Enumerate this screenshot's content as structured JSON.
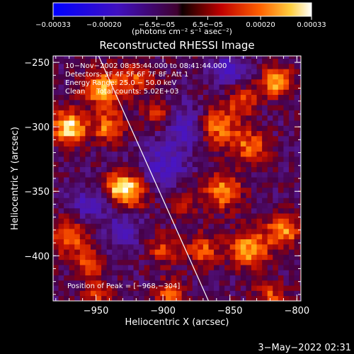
{
  "chart_data": {
    "type": "heatmap",
    "title": "Reconstructed RHESSI Image",
    "xlabel": "Heliocentric X (arcsec)",
    "ylabel": "Heliocentric Y (arcsec)",
    "xlim": [
      -982,
      -797
    ],
    "ylim": [
      -435,
      -245
    ],
    "xticks": [
      -950,
      -900,
      -850,
      -800
    ],
    "xtick_labels": [
      "−950",
      "−900",
      "−850",
      "−800"
    ],
    "yticks": [
      -250,
      -300,
      -350,
      -400
    ],
    "ytick_labels": [
      "−250",
      "−300",
      "−350",
      "−400"
    ],
    "colorbar": {
      "vmin": -0.00033,
      "vmax": 0.00033,
      "ticks": [
        -0.00033,
        -0.0002,
        -6.5e-05,
        6.5e-05,
        0.0002,
        0.00033
      ],
      "tick_labels": [
        "−0.00033",
        "−0.00020",
        "−6.5e−05",
        "6.5e−05",
        "0.00020",
        "0.00033"
      ],
      "units": "(photons cm⁻² s⁻¹ asec⁻²)"
    },
    "annotations": [
      "10−Nov−2002 08:35:44.000 to 08:41:44.000",
      "Detectors: 3F 4F 5F 6F 7F 8F, Att 1",
      "Energy Range: 25.0 − 50.0 keV",
      "Clean     Total counts: 5.02E+03",
      "Position of Peak = [−968,−304]"
    ],
    "peak": {
      "x": -968,
      "y": -304
    },
    "limb_line": {
      "x1": -948,
      "y1": -245,
      "x2": -866,
      "y2": -435
    },
    "hotspots": [
      {
        "x": -970,
        "y": -300,
        "amp": 1.0,
        "s": 9
      },
      {
        "x": -945,
        "y": -270,
        "amp": 0.85,
        "s": 10
      },
      {
        "x": -940,
        "y": -300,
        "amp": 0.7,
        "s": 8
      },
      {
        "x": -918,
        "y": -262,
        "amp": 0.55,
        "s": 8
      },
      {
        "x": -925,
        "y": -350,
        "amp": 0.85,
        "s": 9
      },
      {
        "x": -935,
        "y": -345,
        "amp": 0.55,
        "s": 7
      },
      {
        "x": -905,
        "y": -290,
        "amp": 0.5,
        "s": 7
      },
      {
        "x": -860,
        "y": -300,
        "amp": 0.75,
        "s": 11
      },
      {
        "x": -835,
        "y": -315,
        "amp": 0.6,
        "s": 9
      },
      {
        "x": -840,
        "y": -280,
        "amp": 0.55,
        "s": 8
      },
      {
        "x": -815,
        "y": -265,
        "amp": 0.85,
        "s": 8
      },
      {
        "x": -855,
        "y": -350,
        "amp": 0.7,
        "s": 10
      },
      {
        "x": -835,
        "y": -395,
        "amp": 0.8,
        "s": 10
      },
      {
        "x": -810,
        "y": -380,
        "amp": 0.75,
        "s": 9
      },
      {
        "x": -870,
        "y": -395,
        "amp": 0.55,
        "s": 9
      },
      {
        "x": -970,
        "y": -385,
        "amp": 0.6,
        "s": 10
      },
      {
        "x": -955,
        "y": -405,
        "amp": 0.5,
        "s": 8
      },
      {
        "x": -900,
        "y": -395,
        "amp": 0.5,
        "s": 8
      },
      {
        "x": -895,
        "y": -430,
        "amp": 0.55,
        "s": 8
      },
      {
        "x": -950,
        "y": -430,
        "amp": 0.45,
        "s": 8
      },
      {
        "x": -820,
        "y": -430,
        "amp": 0.5,
        "s": 8
      },
      {
        "x": -885,
        "y": -360,
        "amp": 0.4,
        "s": 7
      }
    ],
    "coldspots": [
      {
        "x": -880,
        "y": -300,
        "amp": -0.5,
        "s": 12
      },
      {
        "x": -900,
        "y": -330,
        "amp": -0.45,
        "s": 12
      },
      {
        "x": -850,
        "y": -255,
        "amp": -0.45,
        "s": 9
      },
      {
        "x": -955,
        "y": -360,
        "amp": -0.4,
        "s": 9
      },
      {
        "x": -930,
        "y": -380,
        "amp": -0.35,
        "s": 10
      }
    ]
  },
  "footer": {
    "date": "3−May−2022 02:31"
  }
}
